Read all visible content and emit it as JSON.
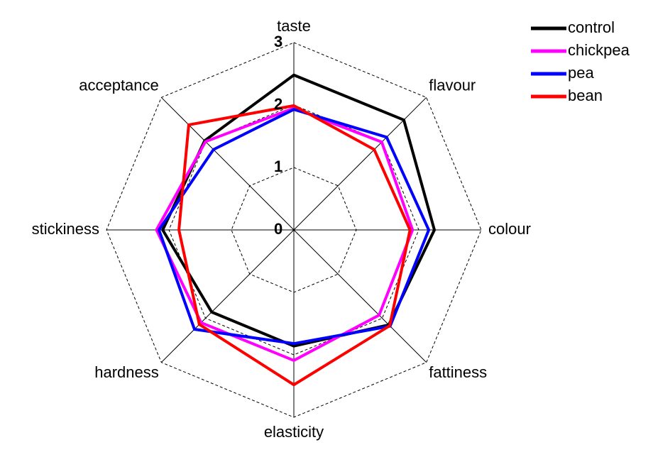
{
  "chart_data": {
    "type": "radar",
    "categories": [
      "taste",
      "flavour",
      "colour",
      "fattiness",
      "elasticity",
      "hardness",
      "stickiness",
      "acceptance"
    ],
    "rlim": [
      0,
      3
    ],
    "rticks": [
      0,
      1,
      2,
      3
    ],
    "grid": true,
    "legend": "top-right",
    "series": [
      {
        "name": "control",
        "color": "#000000",
        "values": [
          2.48,
          2.49,
          2.25,
          2.15,
          1.86,
          1.86,
          2.1,
          2.02
        ]
      },
      {
        "name": "chickpea",
        "color": "#ff00ff",
        "values": [
          1.95,
          1.99,
          1.9,
          1.93,
          2.09,
          2.1,
          2.2,
          2.0
        ]
      },
      {
        "name": "pea",
        "color": "#0000ff",
        "values": [
          1.93,
          2.1,
          2.16,
          2.18,
          1.82,
          2.25,
          2.16,
          1.82
        ]
      },
      {
        "name": "bean",
        "color": "#ff0000",
        "values": [
          1.99,
          1.82,
          1.86,
          2.17,
          2.48,
          2.14,
          1.84,
          2.38
        ]
      }
    ]
  }
}
